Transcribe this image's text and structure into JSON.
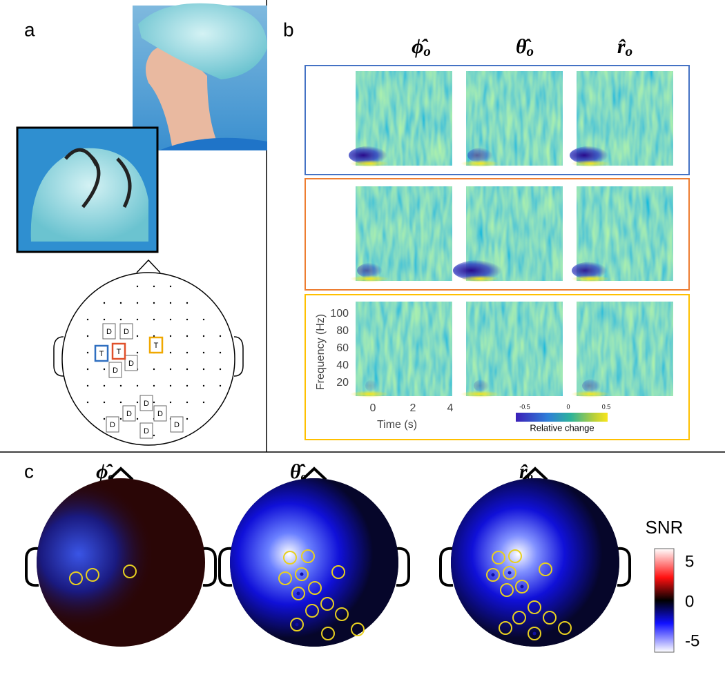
{
  "panel_a": {
    "label": "a",
    "montage": {
      "detectors": [
        "D",
        "D",
        "D",
        "D",
        "D",
        "D",
        "D",
        "D",
        "D",
        "D"
      ],
      "targets": [
        "T",
        "T",
        "T"
      ]
    }
  },
  "panel_b": {
    "label": "b",
    "columns": [
      {
        "symbol": "ϕ̂",
        "sub": "o"
      },
      {
        "symbol": "θ̂",
        "sub": "o"
      },
      {
        "symbol": "r̂",
        "sub": "o"
      }
    ],
    "y_axis": {
      "label": "Frequency (Hz)",
      "ticks": [
        100,
        80,
        60,
        40,
        20
      ]
    },
    "x_axis": {
      "label": "Time (s)",
      "ticks": [
        0,
        2,
        4
      ]
    },
    "colorbar": {
      "label": "Relative change",
      "ticks": [
        -0.5,
        0,
        0.5
      ]
    }
  },
  "panel_c": {
    "label": "c",
    "columns": [
      {
        "symbol": "ϕ̂",
        "sub": "o"
      },
      {
        "symbol": "θ̂",
        "sub": "o"
      },
      {
        "symbol": "r̂",
        "sub": "o"
      }
    ],
    "colorbar": {
      "label": "SNR",
      "ticks": [
        5,
        0,
        -5
      ]
    }
  }
}
